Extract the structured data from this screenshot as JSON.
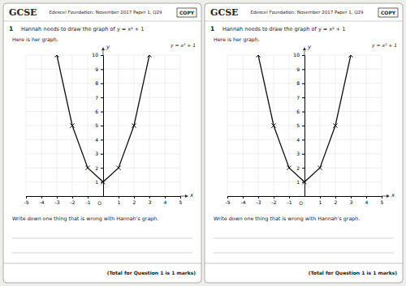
{
  "chart_data": [
    {
      "type": "line",
      "title": "GCSE",
      "subtitle": "Edexcel Foundation: November 2017 Paper 1, Q29",
      "annotations": [
        "COPY",
        "1",
        "Hannah needs to draw the graph of y = x² + 1",
        "Here is her graph.",
        "y = x² + 1",
        "Write down one thing that is wrong with Hannah’s graph.",
        "(Total for Question 1 is 1 marks)",
        "O"
      ],
      "x_label": "x",
      "y_label": "y",
      "x": [
        -3,
        -2,
        -1,
        0,
        1,
        2,
        3
      ],
      "values": [
        10,
        5,
        2,
        1,
        2,
        5,
        10
      ],
      "color": "#111111",
      "marker": "x",
      "line_style": "solid",
      "xlim": [
        -5,
        5
      ],
      "ylim": [
        0,
        10
      ],
      "xticks": [
        -5,
        -4,
        -3,
        -2,
        -1,
        1,
        2,
        3,
        4,
        5
      ],
      "yticks": [
        1,
        2,
        3,
        4,
        5,
        6,
        7,
        8,
        9,
        10
      ],
      "grid": true
    },
    {
      "type": "line",
      "title": "GCSE",
      "subtitle": "Edexcel Foundation: November 2017 Paper 1, Q29",
      "annotations": [
        "COPY",
        "1",
        "Hannah needs to draw the graph of y = x² + 1",
        "Here is her graph.",
        "y = x² + 1",
        "Write down one thing that is wrong with Hannah’s graph.",
        "(Total for Question 1 is 1 marks)",
        "O"
      ],
      "x_label": "x",
      "y_label": "y",
      "x": [
        -3,
        -2,
        -1,
        0,
        1,
        2,
        3
      ],
      "values": [
        10,
        5,
        2,
        1,
        2,
        5,
        10
      ],
      "color": "#111111",
      "marker": "x",
      "line_style": "solid",
      "xlim": [
        -5,
        5
      ],
      "ylim": [
        0,
        10
      ],
      "xticks": [
        -5,
        -4,
        -3,
        -2,
        -1,
        1,
        2,
        3,
        4,
        5
      ],
      "yticks": [
        1,
        2,
        3,
        4,
        5,
        6,
        7,
        8,
        9,
        10
      ],
      "grid": true
    }
  ]
}
